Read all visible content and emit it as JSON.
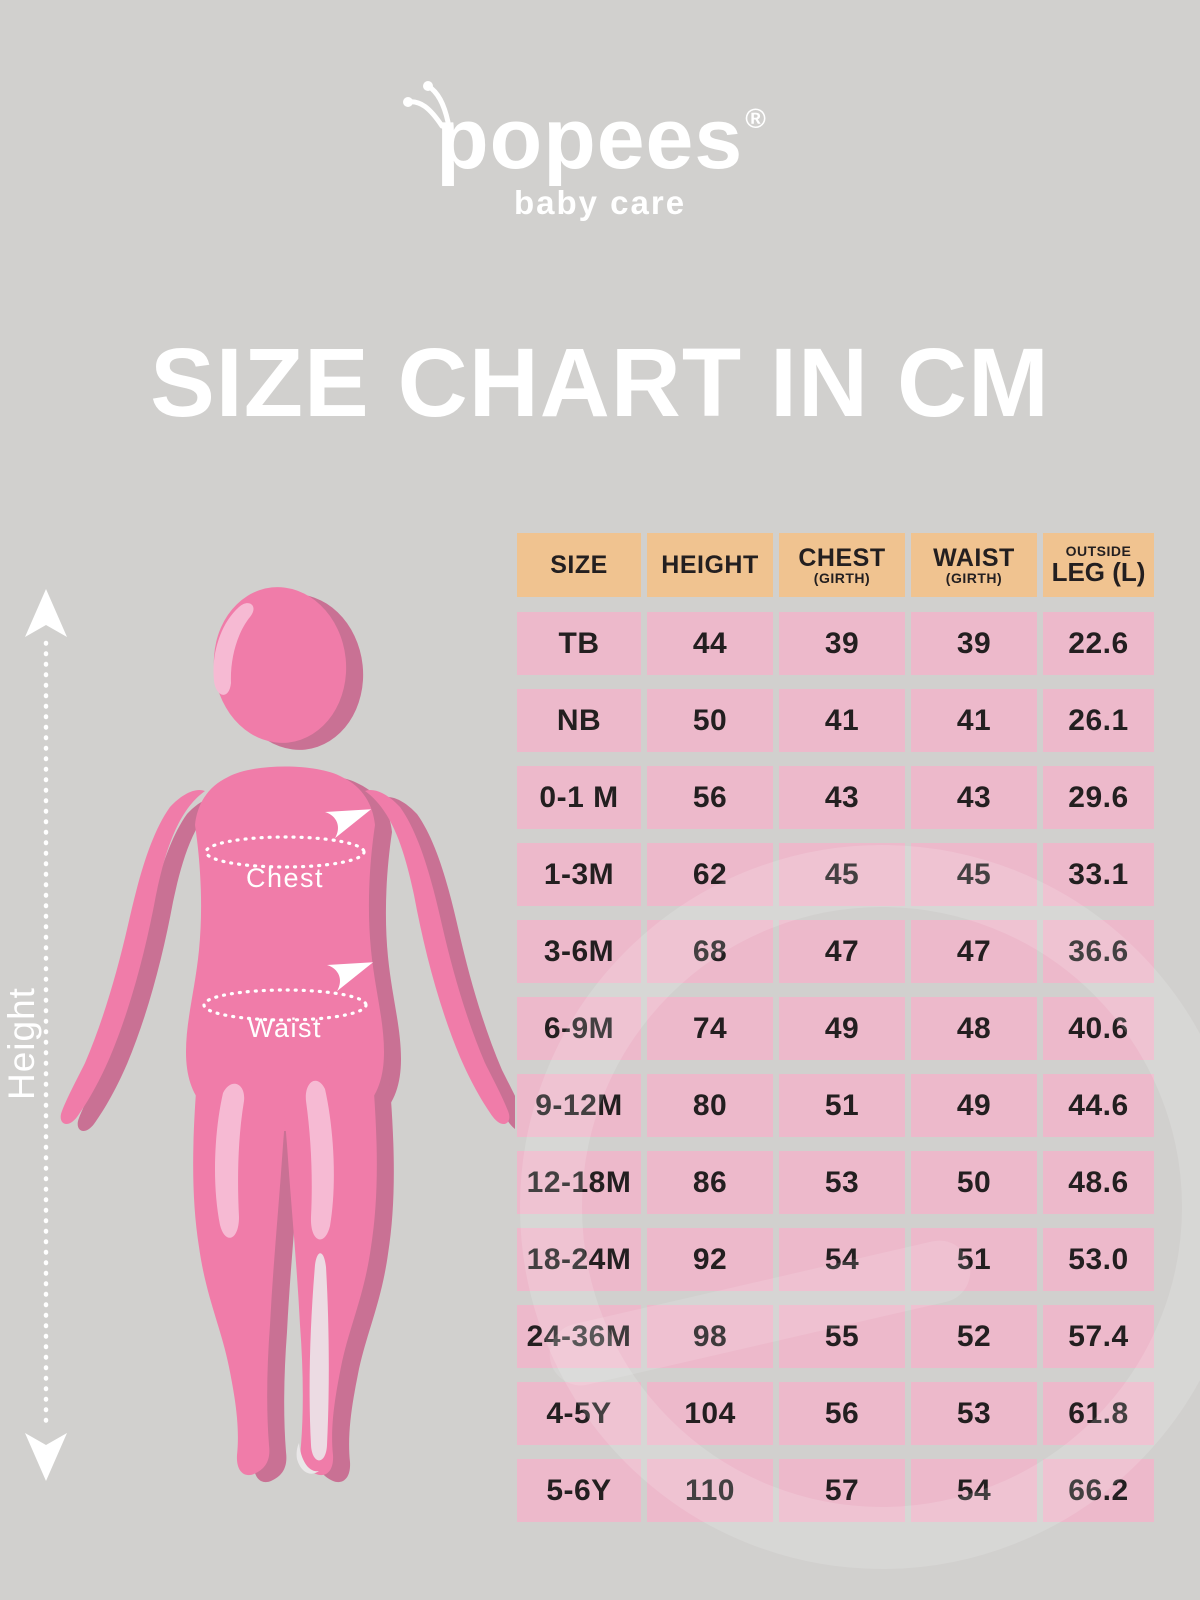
{
  "brand": {
    "logo_text": "Popees",
    "registered_mark": "®",
    "tagline": "baby care"
  },
  "title": "SIZE CHART IN CM",
  "figure": {
    "height_label": "Height",
    "chest_label": "Chest",
    "waist_label": "Waist"
  },
  "table": {
    "columns": [
      {
        "title": "SIZE",
        "sub": "",
        "sub_pos": "none"
      },
      {
        "title": "HEIGHT",
        "sub": "",
        "sub_pos": "none"
      },
      {
        "title": "CHEST",
        "sub": "(GIRTH)",
        "sub_pos": "below"
      },
      {
        "title": "WAIST",
        "sub": "(GIRTH)",
        "sub_pos": "below"
      },
      {
        "title": "LEG (L)",
        "sub": "OUTSIDE",
        "sub_pos": "above"
      }
    ]
  },
  "chart_data": {
    "type": "table",
    "title": "SIZE CHART IN CM",
    "units": "cm",
    "columns": [
      "SIZE",
      "HEIGHT",
      "CHEST (GIRTH)",
      "WAIST (GIRTH)",
      "OUTSIDE LEG (L)"
    ],
    "rows": [
      [
        "TB",
        "44",
        "39",
        "39",
        "22.6"
      ],
      [
        "NB",
        "50",
        "41",
        "41",
        "26.1"
      ],
      [
        "0-1 M",
        "56",
        "43",
        "43",
        "29.6"
      ],
      [
        "1-3M",
        "62",
        "45",
        "45",
        "33.1"
      ],
      [
        "3-6M",
        "68",
        "47",
        "47",
        "36.6"
      ],
      [
        "6-9M",
        "74",
        "49",
        "48",
        "40.6"
      ],
      [
        "9-12M",
        "80",
        "51",
        "49",
        "44.6"
      ],
      [
        "12-18M",
        "86",
        "53",
        "50",
        "48.6"
      ],
      [
        "18-24M",
        "92",
        "54",
        "51",
        "53.0"
      ],
      [
        "24-36M",
        "98",
        "55",
        "52",
        "57.4"
      ],
      [
        "4-5Y",
        "104",
        "56",
        "53",
        "61.8"
      ],
      [
        "5-6Y",
        "110",
        "57",
        "54",
        "66.2"
      ]
    ]
  },
  "colors": {
    "background": "#d1d0ce",
    "header_cell": "#f0c390",
    "data_cell": "#edb9cb",
    "text_dark": "#231f20",
    "white": "#ffffff",
    "figure_pink": "#f07ca9",
    "figure_shadow": "#c97194",
    "figure_highlight": "#f6bad3"
  }
}
